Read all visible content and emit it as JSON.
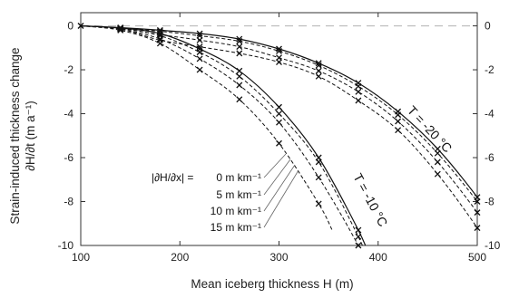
{
  "chart_data": {
    "type": "line",
    "xlabel": "Mean iceberg thickness H (m)",
    "ylabel_line1": "Strain-induced thickness change",
    "ylabel_line2": "∂H/∂t (m a⁻¹)",
    "xlim": [
      100,
      500
    ],
    "ylim": [
      -10,
      0.6
    ],
    "xticks": [
      100,
      200,
      300,
      400,
      500
    ],
    "yticks": [
      0,
      -2,
      -4,
      -6,
      -8,
      -10
    ],
    "grid": false,
    "zero_line": true,
    "legend_header": "|∂H/∂x| =",
    "legend_entries": [
      "0 m km⁻¹",
      "5 m km⁻¹",
      "10 m km⁻¹",
      "15 m km⁻¹"
    ],
    "annotations": [
      "T = -20 °C",
      "T = -10 °C"
    ],
    "series": [
      {
        "group": "T = -10 °C",
        "gradient": "0 m km⁻¹",
        "style": "solid",
        "x": [
          100,
          140,
          180,
          220,
          260,
          300,
          340,
          380
        ],
        "y": [
          0,
          -0.1,
          -0.35,
          -1.05,
          -2.05,
          -3.7,
          -6.0,
          -9.3
        ]
      },
      {
        "group": "T = -10 °C",
        "gradient": "5 m km⁻¹",
        "style": "dashed",
        "x": [
          100,
          140,
          180,
          220,
          260,
          300,
          340,
          380
        ],
        "y": [
          0,
          -0.12,
          -0.45,
          -1.2,
          -2.3,
          -4.0,
          -6.2,
          -9.6
        ]
      },
      {
        "group": "T = -10 °C",
        "gradient": "10 m km⁻¹",
        "style": "dashed",
        "x": [
          100,
          140,
          180,
          220,
          260,
          300,
          340,
          380
        ],
        "y": [
          0,
          -0.15,
          -0.6,
          -1.5,
          -2.7,
          -4.4,
          -6.9,
          -10.0
        ]
      },
      {
        "group": "T = -10 °C",
        "gradient": "15 m km⁻¹",
        "style": "dashed",
        "x": [
          100,
          140,
          180,
          220,
          260,
          300,
          340
        ],
        "y": [
          0,
          -0.2,
          -0.8,
          -2.0,
          -3.35,
          -5.35,
          -8.1
        ]
      },
      {
        "group": "T = -20 °C",
        "gradient": "0 m km⁻¹",
        "style": "solid",
        "x": [
          100,
          140,
          180,
          220,
          260,
          300,
          340,
          380,
          420,
          460,
          500
        ],
        "y": [
          0,
          -0.08,
          -0.2,
          -0.35,
          -0.6,
          -1.05,
          -1.7,
          -2.6,
          -3.9,
          -5.6,
          -7.8
        ]
      },
      {
        "group": "T = -20 °C",
        "gradient": "5 m km⁻¹",
        "style": "dashed",
        "x": [
          100,
          140,
          180,
          220,
          260,
          300,
          340,
          380,
          420,
          460,
          500
        ],
        "y": [
          0,
          -0.1,
          -0.25,
          -0.45,
          -0.7,
          -1.15,
          -1.8,
          -2.75,
          -4.05,
          -5.8,
          -8.0
        ]
      },
      {
        "group": "T = -20 °C",
        "gradient": "10 m km⁻¹",
        "style": "dashed",
        "x": [
          100,
          140,
          180,
          220,
          260,
          300,
          340,
          380,
          420,
          460,
          500
        ],
        "y": [
          0,
          -0.12,
          -0.4,
          -0.65,
          -0.95,
          -1.45,
          -2.05,
          -3.0,
          -4.35,
          -6.2,
          -8.5
        ]
      },
      {
        "group": "T = -20 °C",
        "gradient": "15 m km⁻¹",
        "style": "dashed",
        "x": [
          100,
          140,
          180,
          220,
          260,
          300,
          340,
          380,
          420,
          460,
          500
        ],
        "y": [
          0,
          -0.15,
          -0.65,
          -0.95,
          -1.25,
          -1.65,
          -2.3,
          -3.4,
          -4.75,
          -6.75,
          -9.2
        ]
      }
    ]
  }
}
